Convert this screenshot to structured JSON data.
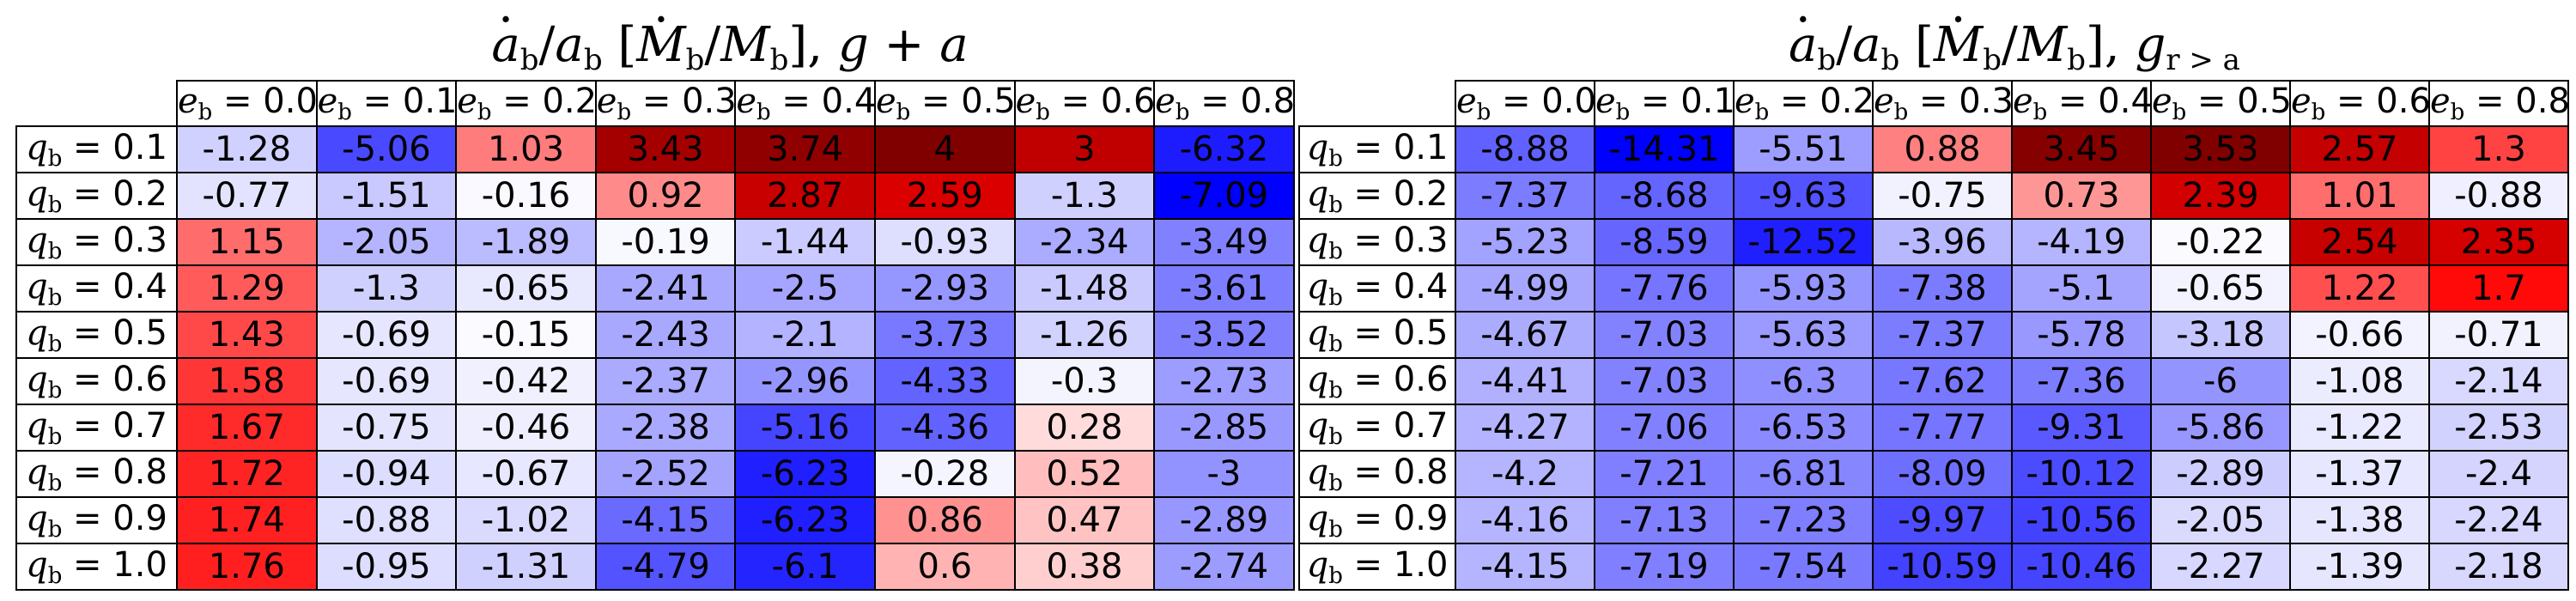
{
  "chart_data": [
    {
      "type": "heatmap",
      "title": "ȧb/ab [Ṁb/Mb], g + a",
      "columns": [
        "e_b = 0.0",
        "e_b = 0.1",
        "e_b = 0.2",
        "e_b = 0.3",
        "e_b = 0.4",
        "e_b = 0.5",
        "e_b = 0.6",
        "e_b = 0.8"
      ],
      "col_values": [
        "0.0",
        "0.1",
        "0.2",
        "0.3",
        "0.4",
        "0.5",
        "0.6",
        "0.8"
      ],
      "rows": [
        "q_b = 0.1",
        "q_b = 0.2",
        "q_b = 0.3",
        "q_b = 0.4",
        "q_b = 0.5",
        "q_b = 0.6",
        "q_b = 0.7",
        "q_b = 0.8",
        "q_b = 0.9",
        "q_b = 1.0"
      ],
      "row_values": [
        "0.1",
        "0.2",
        "0.3",
        "0.4",
        "0.5",
        "0.6",
        "0.7",
        "0.8",
        "0.9",
        "1.0"
      ],
      "values": [
        [
          -1.28,
          -5.06,
          1.03,
          3.43,
          3.74,
          4.0,
          3.0,
          -6.32
        ],
        [
          -0.77,
          -1.51,
          -0.16,
          0.92,
          2.87,
          2.59,
          -1.3,
          -7.09
        ],
        [
          1.15,
          -2.05,
          -1.89,
          -0.19,
          -1.44,
          -0.93,
          -2.34,
          -3.49
        ],
        [
          1.29,
          -1.3,
          -0.65,
          -2.41,
          -2.5,
          -2.93,
          -1.48,
          -3.61
        ],
        [
          1.43,
          -0.69,
          -0.15,
          -2.43,
          -2.1,
          -3.73,
          -1.26,
          -3.52
        ],
        [
          1.58,
          -0.69,
          -0.42,
          -2.37,
          -2.96,
          -4.33,
          -0.3,
          -2.73
        ],
        [
          1.67,
          -0.75,
          -0.46,
          -2.38,
          -5.16,
          -4.36,
          0.28,
          -2.85
        ],
        [
          1.72,
          -0.94,
          -0.67,
          -2.52,
          -6.23,
          -0.28,
          0.52,
          -3.0
        ],
        [
          1.74,
          -0.88,
          -1.02,
          -4.15,
          -6.23,
          0.86,
          0.47,
          -2.89
        ],
        [
          1.76,
          -0.95,
          -1.31,
          -4.79,
          -6.1,
          0.6,
          0.38,
          -2.74
        ]
      ],
      "colormap": "bwr",
      "color_range": [
        -7.09,
        4.0
      ],
      "colors": {
        "negative": "#0000ff",
        "zero": "#ffffff",
        "positive": "#ff0000",
        "deep_positive": "#800000"
      }
    },
    {
      "type": "heatmap",
      "title": "ȧb/ab [Ṁb/Mb], g r>a",
      "columns": [
        "e_b = 0.0",
        "e_b = 0.1",
        "e_b = 0.2",
        "e_b = 0.3",
        "e_b = 0.4",
        "e_b = 0.5",
        "e_b = 0.6",
        "e_b = 0.8"
      ],
      "col_values": [
        "0.0",
        "0.1",
        "0.2",
        "0.3",
        "0.4",
        "0.5",
        "0.6",
        "0.8"
      ],
      "rows": [
        "q_b = 0.1",
        "q_b = 0.2",
        "q_b = 0.3",
        "q_b = 0.4",
        "q_b = 0.5",
        "q_b = 0.6",
        "q_b = 0.7",
        "q_b = 0.8",
        "q_b = 0.9",
        "q_b = 1.0"
      ],
      "row_values": [
        "0.1",
        "0.2",
        "0.3",
        "0.4",
        "0.5",
        "0.6",
        "0.7",
        "0.8",
        "0.9",
        "1.0"
      ],
      "values": [
        [
          -8.88,
          -14.31,
          -5.51,
          0.88,
          3.45,
          3.53,
          2.57,
          1.3
        ],
        [
          -7.37,
          -8.68,
          -9.63,
          -0.75,
          0.73,
          2.39,
          1.01,
          -0.88
        ],
        [
          -5.23,
          -8.59,
          -12.52,
          -3.96,
          -4.19,
          -0.22,
          2.54,
          2.35
        ],
        [
          -4.99,
          -7.76,
          -5.93,
          -7.38,
          -5.1,
          -0.65,
          1.22,
          1.7
        ],
        [
          -4.67,
          -7.03,
          -5.63,
          -7.37,
          -5.78,
          -3.18,
          -0.66,
          -0.71
        ],
        [
          -4.41,
          -7.03,
          -6.3,
          -7.62,
          -7.36,
          -6.0,
          -1.08,
          -2.14
        ],
        [
          -4.27,
          -7.06,
          -6.53,
          -7.77,
          -9.31,
          -5.86,
          -1.22,
          -2.53
        ],
        [
          -4.2,
          -7.21,
          -6.81,
          -8.09,
          -10.12,
          -2.89,
          -1.37,
          -2.4
        ],
        [
          -4.16,
          -7.13,
          -7.23,
          -9.97,
          -10.56,
          -2.05,
          -1.38,
          -2.24
        ],
        [
          -4.15,
          -7.19,
          -7.54,
          -10.59,
          -10.46,
          -2.27,
          -1.39,
          -2.18
        ]
      ],
      "colormap": "seismic",
      "color_range": [
        -14.31,
        3.53
      ],
      "colors": {
        "negative": "#0000ff",
        "zero": "#ffffff",
        "positive": "#ff0000",
        "deep_positive": "#800000"
      }
    }
  ]
}
